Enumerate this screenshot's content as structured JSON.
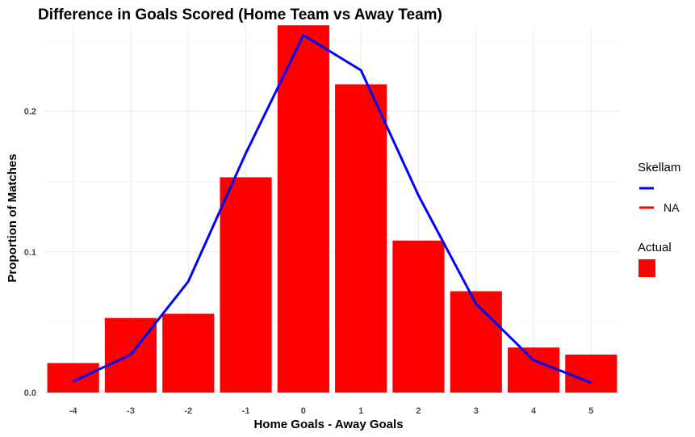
{
  "chart_data": {
    "type": "bar",
    "title": "Difference in Goals Scored (Home Team vs Away Team)",
    "xlabel": "Home Goals - Away Goals",
    "ylabel": "Proportion of Matches",
    "categories": [
      "-4",
      "-3",
      "-2",
      "-1",
      "0",
      "1",
      "2",
      "3",
      "4",
      "5"
    ],
    "x": [
      -4,
      -3,
      -2,
      -1,
      0,
      1,
      2,
      3,
      4,
      5
    ],
    "ylim": [
      0,
      0.26
    ],
    "yticks": [
      0.0,
      0.1,
      0.2
    ],
    "ytick_labels": [
      "0.0",
      "0.1",
      "0.2"
    ],
    "grid": true,
    "series": [
      {
        "name": "Actual",
        "kind": "bar",
        "color": "#ff0000",
        "values": [
          0.021,
          0.053,
          0.056,
          0.153,
          0.261,
          0.219,
          0.108,
          0.072,
          0.032,
          0.027
        ]
      },
      {
        "name": "Skellam",
        "kind": "line",
        "color": "#0000ff",
        "values": [
          0.008,
          0.027,
          0.079,
          0.17,
          0.254,
          0.229,
          0.14,
          0.063,
          0.023,
          0.007
        ]
      }
    ],
    "legend": {
      "placement": "right",
      "groups": [
        {
          "title": "Skellam",
          "entries": [
            {
              "label": "",
              "kind": "line",
              "color": "#0000ff"
            },
            {
              "label": "NA",
              "kind": "line",
              "color": "#ff0000"
            }
          ]
        },
        {
          "title": "Actual",
          "entries": [
            {
              "label": "",
              "kind": "rect",
              "color": "#ff0000"
            }
          ]
        }
      ]
    }
  }
}
